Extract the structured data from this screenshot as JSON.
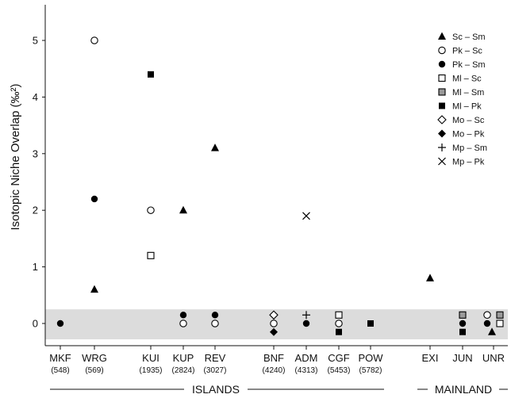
{
  "chart_data": {
    "type": "scatter",
    "ylabel": "Isotopic Niche Overlap (‰²)",
    "ylim": [
      -0.3,
      5.5
    ],
    "yticks": [
      "0",
      "1",
      "2",
      "3",
      "4",
      "5"
    ],
    "shaded_band": [
      -0.28,
      0.25
    ],
    "categories": [
      {
        "name": "MKF",
        "sub": "(548)"
      },
      {
        "name": "WRG",
        "sub": "(569)"
      },
      {
        "name": "KUI",
        "sub": "(1935)"
      },
      {
        "name": "KUP",
        "sub": "(2824)"
      },
      {
        "name": "REV",
        "sub": "(3027)"
      },
      {
        "name": "BNF",
        "sub": "(4240)"
      },
      {
        "name": "ADM",
        "sub": "(4313)"
      },
      {
        "name": "CGF",
        "sub": "(5453)"
      },
      {
        "name": "POW",
        "sub": "(5782)"
      },
      {
        "name": "EXI",
        "sub": ""
      },
      {
        "name": "JUN",
        "sub": ""
      },
      {
        "name": "UNR",
        "sub": ""
      }
    ],
    "groups": [
      {
        "label": "ISLANDS"
      },
      {
        "label": "MAINLAND"
      }
    ],
    "legend_position": "top-right",
    "series": [
      {
        "name": "Sc – Sm",
        "marker": "triangle-filled",
        "points": [
          {
            "x": "WRG",
            "y": 0.6
          },
          {
            "x": "KUP",
            "y": 2.0
          },
          {
            "x": "REV",
            "y": 3.1
          },
          {
            "x": "EXI",
            "y": 0.8
          },
          {
            "x": "UNR",
            "y": -0.15
          }
        ]
      },
      {
        "name": "Pk – Sc",
        "marker": "circle-open",
        "points": [
          {
            "x": "WRG",
            "y": 5.0
          },
          {
            "x": "KUI",
            "y": 2.0
          },
          {
            "x": "KUP",
            "y": 0.0
          },
          {
            "x": "REV",
            "y": 0.0
          },
          {
            "x": "BNF",
            "y": 0.0
          },
          {
            "x": "CGF",
            "y": 0.0
          },
          {
            "x": "UNR",
            "y": 0.15
          }
        ]
      },
      {
        "name": "Pk – Sm",
        "marker": "circle-filled",
        "points": [
          {
            "x": "MKF",
            "y": 0.0
          },
          {
            "x": "WRG",
            "y": 2.2
          },
          {
            "x": "KUP",
            "y": 0.15
          },
          {
            "x": "REV",
            "y": 0.15
          },
          {
            "x": "ADM",
            "y": 0.0
          },
          {
            "x": "JUN",
            "y": 0.0
          },
          {
            "x": "UNR",
            "y": 0.0
          }
        ]
      },
      {
        "name": "Ml – Sc",
        "marker": "square-open",
        "points": [
          {
            "x": "KUI",
            "y": 1.2
          },
          {
            "x": "CGF",
            "y": 0.15
          },
          {
            "x": "UNR",
            "y": 0.0
          }
        ]
      },
      {
        "name": "Ml – Sm",
        "marker": "square-gray",
        "points": [
          {
            "x": "JUN",
            "y": 0.15
          },
          {
            "x": "UNR",
            "y": 0.15
          }
        ]
      },
      {
        "name": "Ml – Pk",
        "marker": "square-filled",
        "points": [
          {
            "x": "KUI",
            "y": 4.4
          },
          {
            "x": "CGF",
            "y": -0.15
          },
          {
            "x": "POW",
            "y": 0.0
          },
          {
            "x": "JUN",
            "y": -0.15
          }
        ]
      },
      {
        "name": "Mo – Sc",
        "marker": "diamond-open",
        "points": [
          {
            "x": "BNF",
            "y": 0.15
          }
        ]
      },
      {
        "name": "Mo – Pk",
        "marker": "diamond-filled",
        "points": [
          {
            "x": "BNF",
            "y": -0.15
          }
        ]
      },
      {
        "name": "Mp – Sm",
        "marker": "plus",
        "points": [
          {
            "x": "ADM",
            "y": 0.15
          }
        ]
      },
      {
        "name": "Mp – Pk",
        "marker": "cross",
        "points": [
          {
            "x": "ADM",
            "y": 1.9
          }
        ]
      }
    ]
  }
}
